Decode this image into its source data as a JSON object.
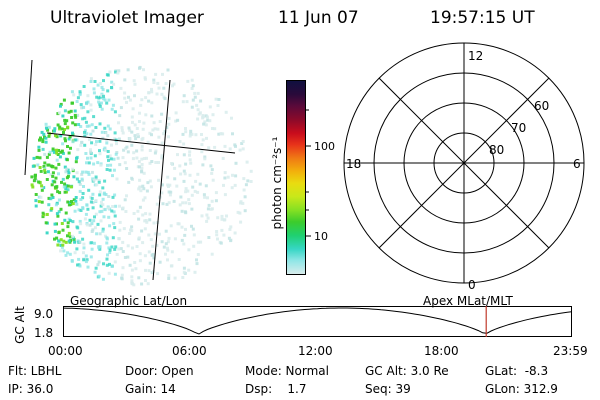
{
  "header": {
    "title": "Ultraviolet Imager",
    "date": "11 Jun 07",
    "time": "19:57:15 UT"
  },
  "colorbar": {
    "unit_label": "photon cm⁻²s⁻¹",
    "ticks": [
      "100",
      "10"
    ],
    "colors": [
      "#101040",
      "#2a0a3a",
      "#5a0a3a",
      "#8b0a2a",
      "#c80c1c",
      "#e8331a",
      "#f07a14",
      "#f2b20c",
      "#e9dc10",
      "#c8e81a",
      "#84e023",
      "#3ccc2c",
      "#1fd070",
      "#36d6c4",
      "#8fe6e6",
      "#d8ecec"
    ]
  },
  "polar_plot": {
    "mlt_labels": {
      "top": "12",
      "left": "18",
      "right": "6",
      "bottom": "0"
    },
    "lat_labels": [
      "60",
      "70",
      "80"
    ]
  },
  "timeline": {
    "left_title": "Geographic Lat/Lon",
    "right_title": "Apex MLat/MLT",
    "y_axis_label": "GC Alt",
    "y_ticks": [
      "9.0",
      "1.8"
    ],
    "x_ticks": [
      "00:00",
      "06:00",
      "12:00",
      "18:00",
      "23:59"
    ],
    "marker_time": "19:57:15",
    "marker_color": "#c0392b",
    "curve_color": "#000000"
  },
  "status": {
    "filter": "Flt: LBHL",
    "door": "Door: Open",
    "mode": "Mode: Normal",
    "gc_alt": "GC Alt: 3.0 Re",
    "glat": "GLat:  -8.3",
    "ip": "IP: 36.0",
    "gain": "Gain: 14",
    "dsp": "Dsp:    1.7",
    "seq": "Seq: 39",
    "glon": "GLon: 312.9"
  }
}
